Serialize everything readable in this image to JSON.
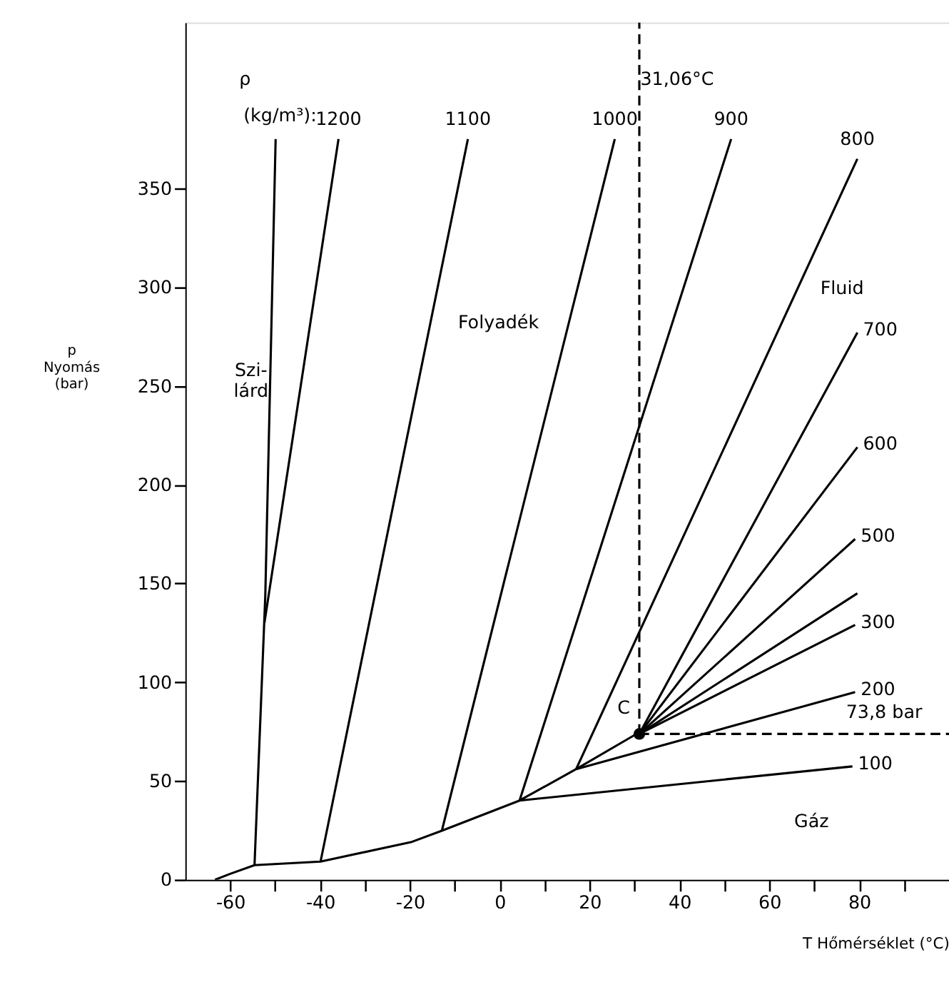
{
  "chart_data": {
    "type": "line",
    "xlabel": "T   Hőmérséklet   (°C)",
    "ylabel": "p\nNyomás\n(bar)",
    "xlim": [
      -70,
      100
    ],
    "ylim": [
      0,
      434
    ],
    "xticks": [
      -60,
      {
        "value": -50,
        "label": null
      },
      -40,
      {
        "value": -30,
        "label": null
      },
      -20,
      {
        "value": -10,
        "label": null
      },
      0,
      {
        "value": 10,
        "label": null
      },
      20,
      {
        "value": 30,
        "label": null
      },
      40,
      {
        "value": 50,
        "label": null
      },
      60,
      {
        "value": 70,
        "label": null
      },
      80,
      {
        "value": 90,
        "label": null
      }
    ],
    "yticks": [
      0,
      50,
      100,
      150,
      200,
      250,
      300,
      350
    ],
    "grid": false,
    "line_style": "solid",
    "marker": "none",
    "series": [
      {
        "color": "#000000",
        "x": [
          -54.6,
          -52.2,
          -49.9
        ],
        "values": [
          7.4,
          144,
          375
        ]
      },
      {
        "color": "#000000",
        "x": [
          -63.4,
          -60,
          -54.6,
          -39.9,
          -19.8,
          -12.9,
          4.4,
          17,
          30.2,
          31.06
        ],
        "values": [
          0,
          3,
          7.4,
          9.2,
          19,
          24.8,
          40.1,
          56,
          73.5,
          73.8
        ]
      },
      {
        "name": "1200",
        "color": "#000000",
        "x": [
          -52.4,
          -35.9
        ],
        "values": [
          130,
          375
        ]
      },
      {
        "name": "1100",
        "color": "#000000",
        "x": [
          -39.9,
          -7.1
        ],
        "values": [
          9.2,
          375
        ]
      },
      {
        "name": "1000",
        "color": "#000000",
        "x": [
          -12.9,
          25.6
        ],
        "values": [
          24.8,
          375
        ]
      },
      {
        "name": "900",
        "color": "#000000",
        "x": [
          4.4,
          51.5
        ],
        "values": [
          40.1,
          375
        ]
      },
      {
        "name": "800",
        "color": "#000000",
        "x": [
          17,
          79.6
        ],
        "values": [
          56,
          365
        ]
      },
      {
        "name": "700",
        "color": "#000000",
        "x": [
          31.06,
          79.6
        ],
        "values": [
          73.8,
          277
        ]
      },
      {
        "name": "600",
        "color": "#000000",
        "x": [
          31.06,
          79.6
        ],
        "values": [
          73.8,
          219
        ]
      },
      {
        "name": "500",
        "color": "#000000",
        "x": [
          31.06,
          79.1
        ],
        "values": [
          73.8,
          172.5
        ]
      },
      {
        "color": "#000000",
        "x": [
          31.06,
          79.6
        ],
        "values": [
          73.8,
          145
        ]
      },
      {
        "name": "300",
        "color": "#000000",
        "x": [
          31.06,
          79.1
        ],
        "values": [
          73.8,
          129
        ]
      },
      {
        "name": "200",
        "color": "#000000",
        "x": [
          17,
          79.1
        ],
        "values": [
          56,
          95
        ]
      },
      {
        "name": "100",
        "color": "#000000",
        "x": [
          4.4,
          78.5
        ],
        "values": [
          40.1,
          57.4
        ]
      },
      {
        "color": "#000000",
        "line_style": "dashed",
        "x": [
          31.06,
          31.06
        ],
        "values": [
          73.8,
          434
        ]
      },
      {
        "color": "#000000",
        "line_style": "dashed",
        "x": [
          31.06,
          100
        ],
        "values": [
          73.8,
          73.8
        ]
      },
      {
        "type": "scatter",
        "marker": "circle",
        "color": "#000000",
        "x": [
          31.06
        ],
        "values": [
          73.8
        ]
      }
    ],
    "annotations": [
      "ρ",
      "(kg/m³):",
      "31,06°C",
      "Szi-\nlárd",
      "Folyadék",
      "Fluid",
      "Gáz",
      "C",
      "73,8 bar"
    ]
  }
}
